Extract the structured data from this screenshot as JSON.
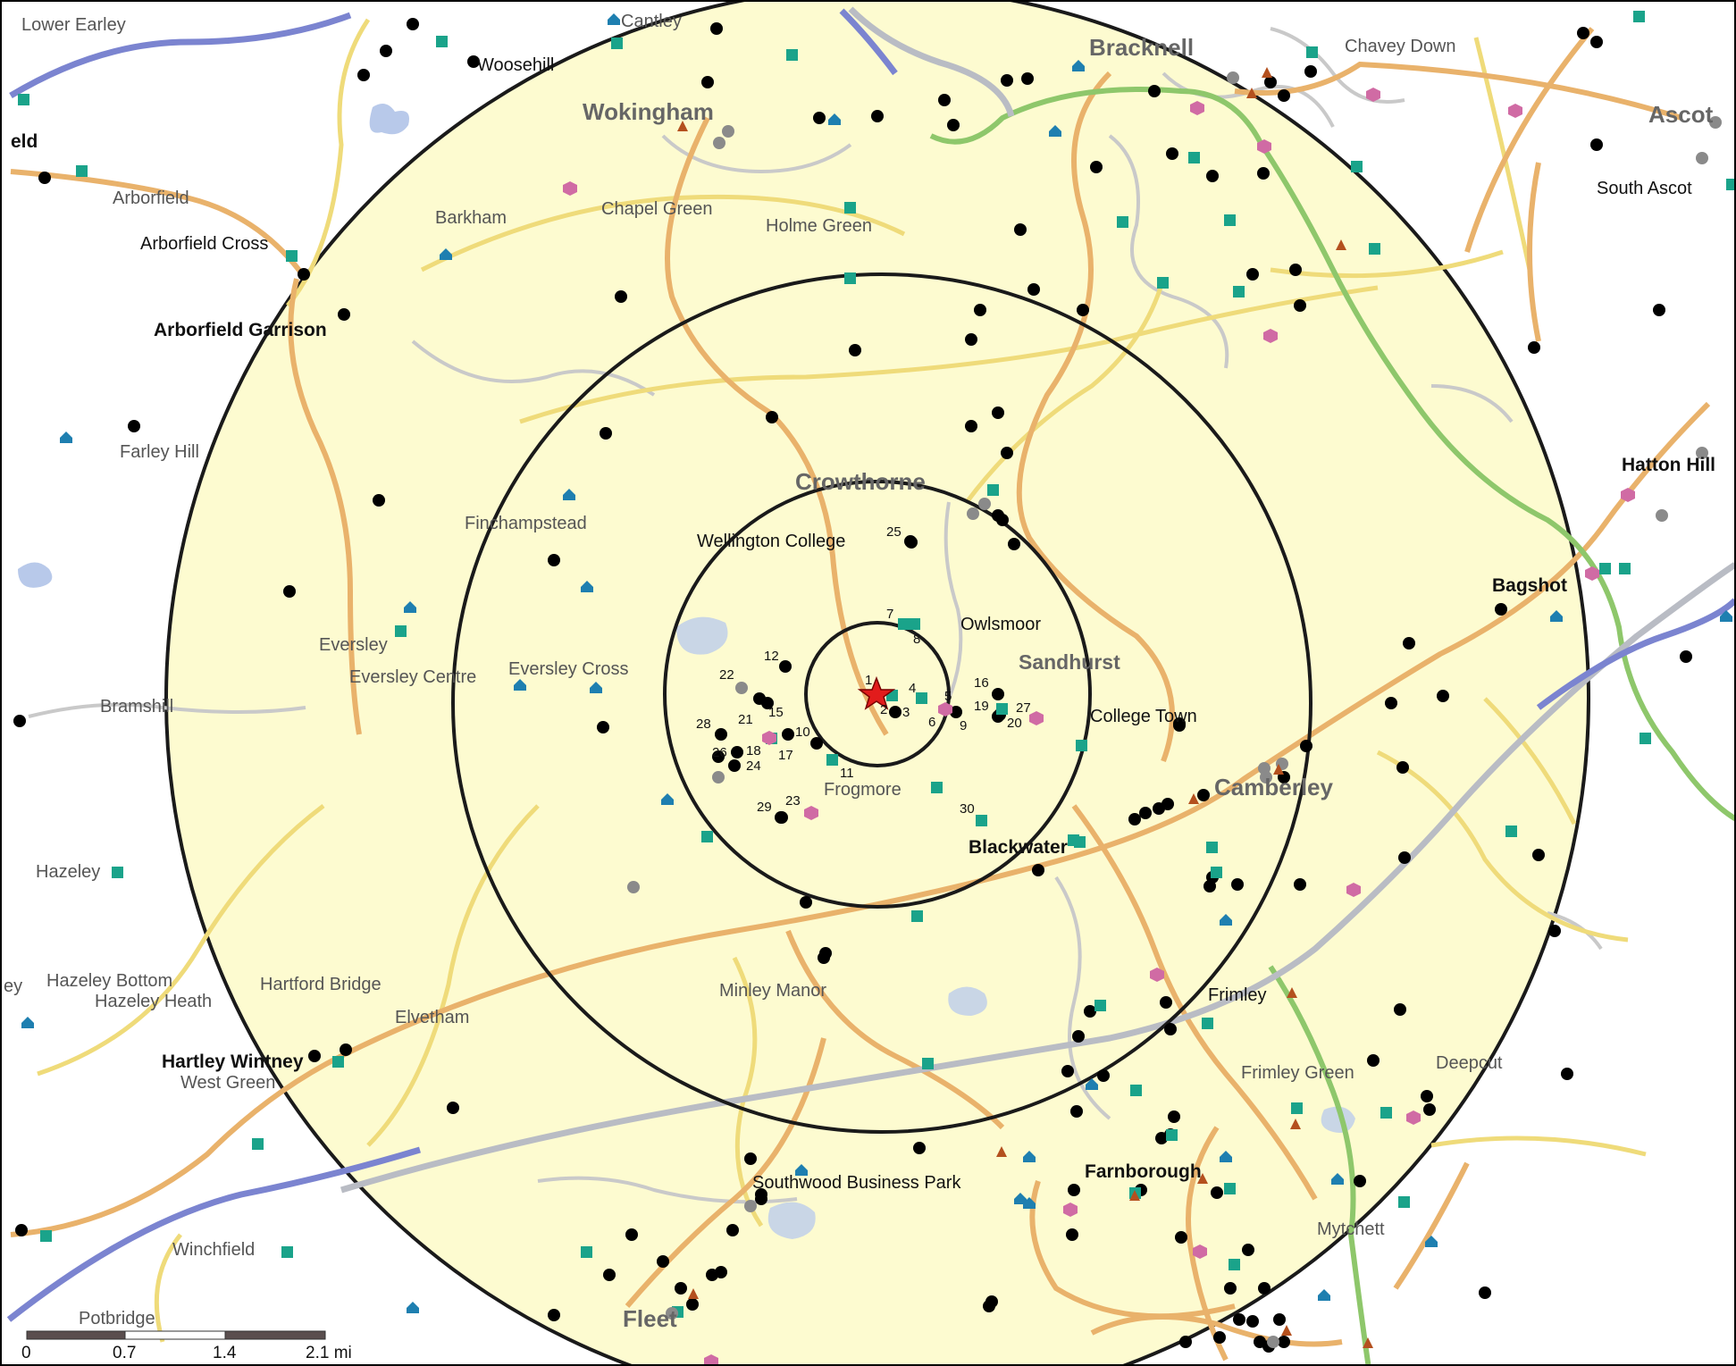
{
  "map": {
    "colors": {
      "background": "#ffffff",
      "ring_fill": "#fdfbd0",
      "ring_stroke": "#1a1a1a",
      "major_road": "#e9b26b",
      "minor_road": "#f0dc7a",
      "local_road": "#c4c4c4",
      "motorway": "#7b84d0",
      "railway": "#b9bcc4",
      "a_road_green": "#8ec76b",
      "water": "#b8c9ea",
      "center_star": "#e21c1c",
      "site_dot": "#000000",
      "teal_marker": "#1aa38a",
      "pink_marker": "#d06ba4",
      "blue_marker": "#1e7fb0",
      "gray_marker": "#8a8a8a",
      "brown_marker": "#b4501e"
    },
    "center_icon": "red-star-icon",
    "labels": [
      {
        "text": "Lower Earley"
      },
      {
        "text": "Cantley"
      },
      {
        "text": "Woosehill"
      },
      {
        "text": "Bracknell"
      },
      {
        "text": "Chavey Down"
      },
      {
        "text": "Wokingham"
      },
      {
        "text": "Ascot"
      },
      {
        "text": "eld"
      },
      {
        "text": "Arborfield"
      },
      {
        "text": "Barkham"
      },
      {
        "text": "Chapel Green"
      },
      {
        "text": "Holme Green"
      },
      {
        "text": "South Ascot"
      },
      {
        "text": "Arborfield Cross"
      },
      {
        "text": "Arborfield Garrison"
      },
      {
        "text": "Farley Hill"
      },
      {
        "text": "Hatton Hill"
      },
      {
        "text": "Crowthorne"
      },
      {
        "text": "Finchampstead"
      },
      {
        "text": "Wellington College"
      },
      {
        "text": "Bagshot"
      },
      {
        "text": "Owlsmoor"
      },
      {
        "text": "Eversley"
      },
      {
        "text": "Sandhurst"
      },
      {
        "text": "Eversley Centre"
      },
      {
        "text": "Eversley Cross"
      },
      {
        "text": "Bramshill"
      },
      {
        "text": "College Town"
      },
      {
        "text": "Camberley"
      },
      {
        "text": "Frogmore"
      },
      {
        "text": "Blackwater"
      },
      {
        "text": "Hazeley"
      },
      {
        "text": "Hazeley Bottom"
      },
      {
        "text": "Hazeley Heath"
      },
      {
        "text": "Hartford Bridge"
      },
      {
        "text": "Minley Manor"
      },
      {
        "text": "Frimley"
      },
      {
        "text": "ey"
      },
      {
        "text": "Elvetham"
      },
      {
        "text": "Hartley Wintney"
      },
      {
        "text": "West Green"
      },
      {
        "text": "Frimley Green"
      },
      {
        "text": "Deepcut"
      },
      {
        "text": "Farnborough"
      },
      {
        "text": "Southwood Business Park"
      },
      {
        "text": "Mytchett"
      },
      {
        "text": "Winchfield"
      },
      {
        "text": "Potbridge"
      },
      {
        "text": "Fleet"
      }
    ],
    "site_numbers": [
      "1",
      "2",
      "3",
      "4",
      "5",
      "6",
      "7",
      "8",
      "9",
      "10",
      "11",
      "12",
      "15",
      "16",
      "17",
      "18",
      "19",
      "20",
      "21",
      "22",
      "23",
      "24",
      "25",
      "26",
      "27",
      "28",
      "29",
      "30"
    ],
    "scale_bar": {
      "ticks": [
        "0",
        "0.7",
        "1.4",
        "2.1 mi"
      ]
    }
  }
}
